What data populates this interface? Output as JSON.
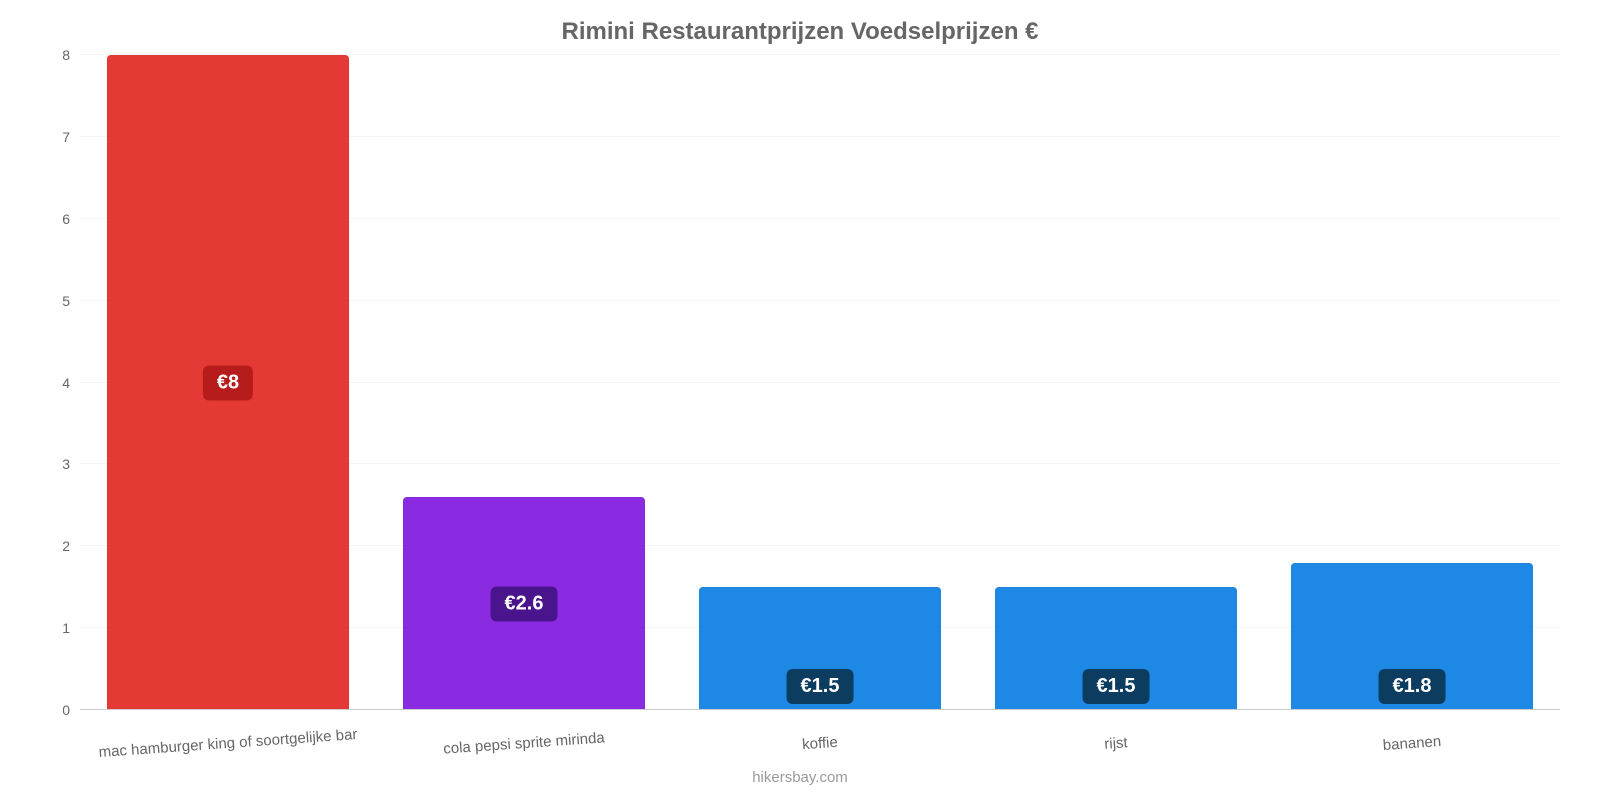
{
  "chart": {
    "type": "bar",
    "title": "Rimini Restaurantprijzen Voedselprijzen €",
    "title_color": "#666666",
    "title_fontsize": 24,
    "background_color": "#ffffff",
    "grid_color": "#f5f5f5",
    "baseline_color": "#cccccc",
    "y": {
      "min": 0,
      "max": 8,
      "ticks": [
        0,
        1,
        2,
        3,
        4,
        5,
        6,
        7,
        8
      ],
      "tick_color": "#666666",
      "tick_fontsize": 14
    },
    "x_label_color": "#666666",
    "x_label_fontsize": 15,
    "x_label_rotation_deg": -4,
    "bar_width_pct": 82,
    "value_label": {
      "text_color": "#ffffff",
      "fontsize": 20,
      "padding": "6px 14px",
      "border_radius": 6
    },
    "bars": [
      {
        "category": "mac hamburger king of soortgelijke bar",
        "value": 8,
        "display": "€8",
        "bar_color": "#e53935",
        "label_bg": "#b71c1c",
        "label_strategy": "middle"
      },
      {
        "category": "cola pepsi sprite mirinda",
        "value": 2.6,
        "display": "€2.6",
        "bar_color": "#8a2be2",
        "label_bg": "#4a148c",
        "label_strategy": "middle"
      },
      {
        "category": "koffie",
        "value": 1.5,
        "display": "€1.5",
        "bar_color": "#1e88e5",
        "label_bg": "#0d3c61",
        "label_strategy": "bottom"
      },
      {
        "category": "rijst",
        "value": 1.5,
        "display": "€1.5",
        "bar_color": "#1e88e5",
        "label_bg": "#0d3c61",
        "label_strategy": "bottom"
      },
      {
        "category": "bananen",
        "value": 1.8,
        "display": "€1.8",
        "bar_color": "#1e88e5",
        "label_bg": "#0d3c61",
        "label_strategy": "bottom"
      }
    ],
    "attribution": "hikersbay.com",
    "attribution_color": "#999999"
  }
}
